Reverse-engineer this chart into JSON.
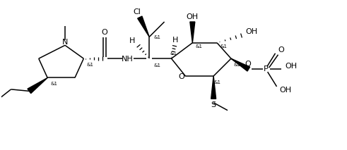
{
  "background": "#ffffff",
  "figsize": [
    4.91,
    2.13
  ],
  "dpi": 100,
  "line_color": "#000000",
  "text_color": "#000000",
  "font_size": 7.5,
  "stereo_font_size": 5.0,
  "lw": 1.1,
  "xlim": [
    0,
    9.82
  ],
  "ylim": [
    0,
    4.26
  ]
}
